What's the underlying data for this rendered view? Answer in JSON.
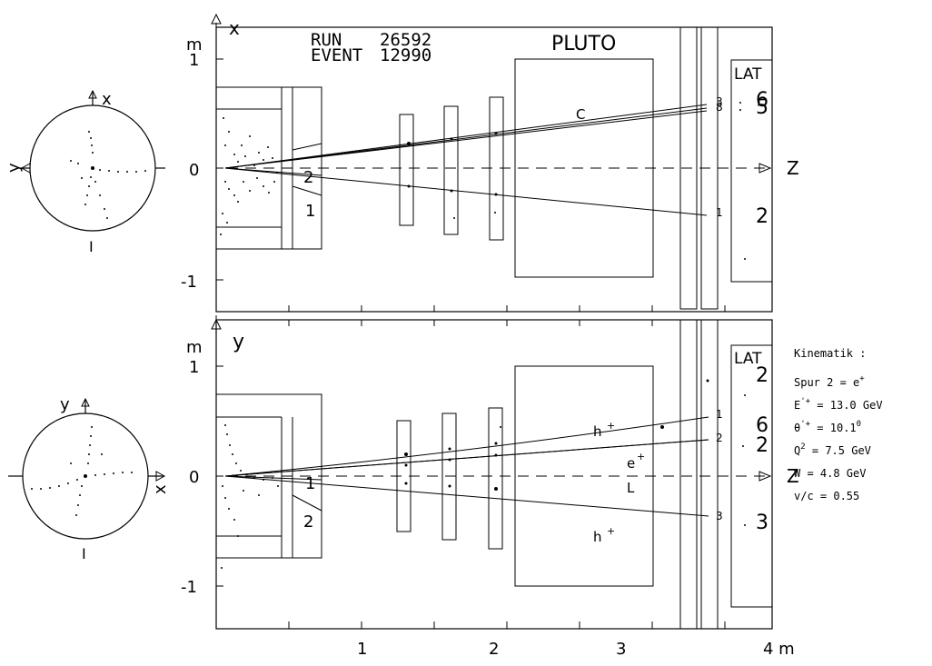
{
  "header": {
    "run_label": "RUN",
    "run_value": "26592",
    "event_label": "EVENT",
    "event_value": "12990",
    "detector": "PLUTO"
  },
  "top_view": {
    "axis_vertical": "x",
    "axis_horizontal": "Z",
    "unit": "m",
    "ticks": [
      "1",
      "0",
      "-1"
    ],
    "lat_label": "LAT",
    "track_labels": {
      "c": "C",
      "two_inner": "2",
      "one_inner": "1",
      "three_end": "3",
      "eight_end": "8",
      "one_end": "1"
    },
    "lat_numbers": {
      "six": "6",
      "five": "5",
      "two": "2"
    }
  },
  "side_view": {
    "axis_vertical": "y",
    "axis_horizontal": "Z",
    "unit": "m",
    "ticks": [
      "1",
      "0",
      "-1"
    ],
    "lat_label": "LAT",
    "track_labels": {
      "h_top": "h",
      "e": "e",
      "h_bottom": "h",
      "l": "L",
      "one_inner": "1",
      "two_inner": "2",
      "end_1": "1",
      "end_2": "2",
      "end_3": "3"
    },
    "lat_numbers": {
      "two": "2",
      "six": "6",
      "two_b": "2",
      "three": "3"
    }
  },
  "x_axis": {
    "ticks": [
      "1",
      "2",
      "3",
      "4 m"
    ]
  },
  "circle_top": {
    "x": "x",
    "y": "y",
    "z_mark": "I"
  },
  "circle_bottom": {
    "x": "x",
    "y": "y",
    "z_mark": "I"
  },
  "kinematics": {
    "title": "Kinematik :",
    "rows": [
      {
        "label": "Spur 2 = e",
        "sup": "+"
      },
      {
        "label": "E",
        "sup": "'+",
        "value": " = 13.0 GeV"
      },
      {
        "label": "θ",
        "sup": "'+",
        "value": " = 10.1",
        "unit_sup": "0"
      },
      {
        "label": "Q",
        "sup": "2",
        "value": "  =  7.5 GeV"
      },
      {
        "label": "W   =  4.8 GeV"
      },
      {
        "label": "v/c =  0.55"
      }
    ]
  }
}
